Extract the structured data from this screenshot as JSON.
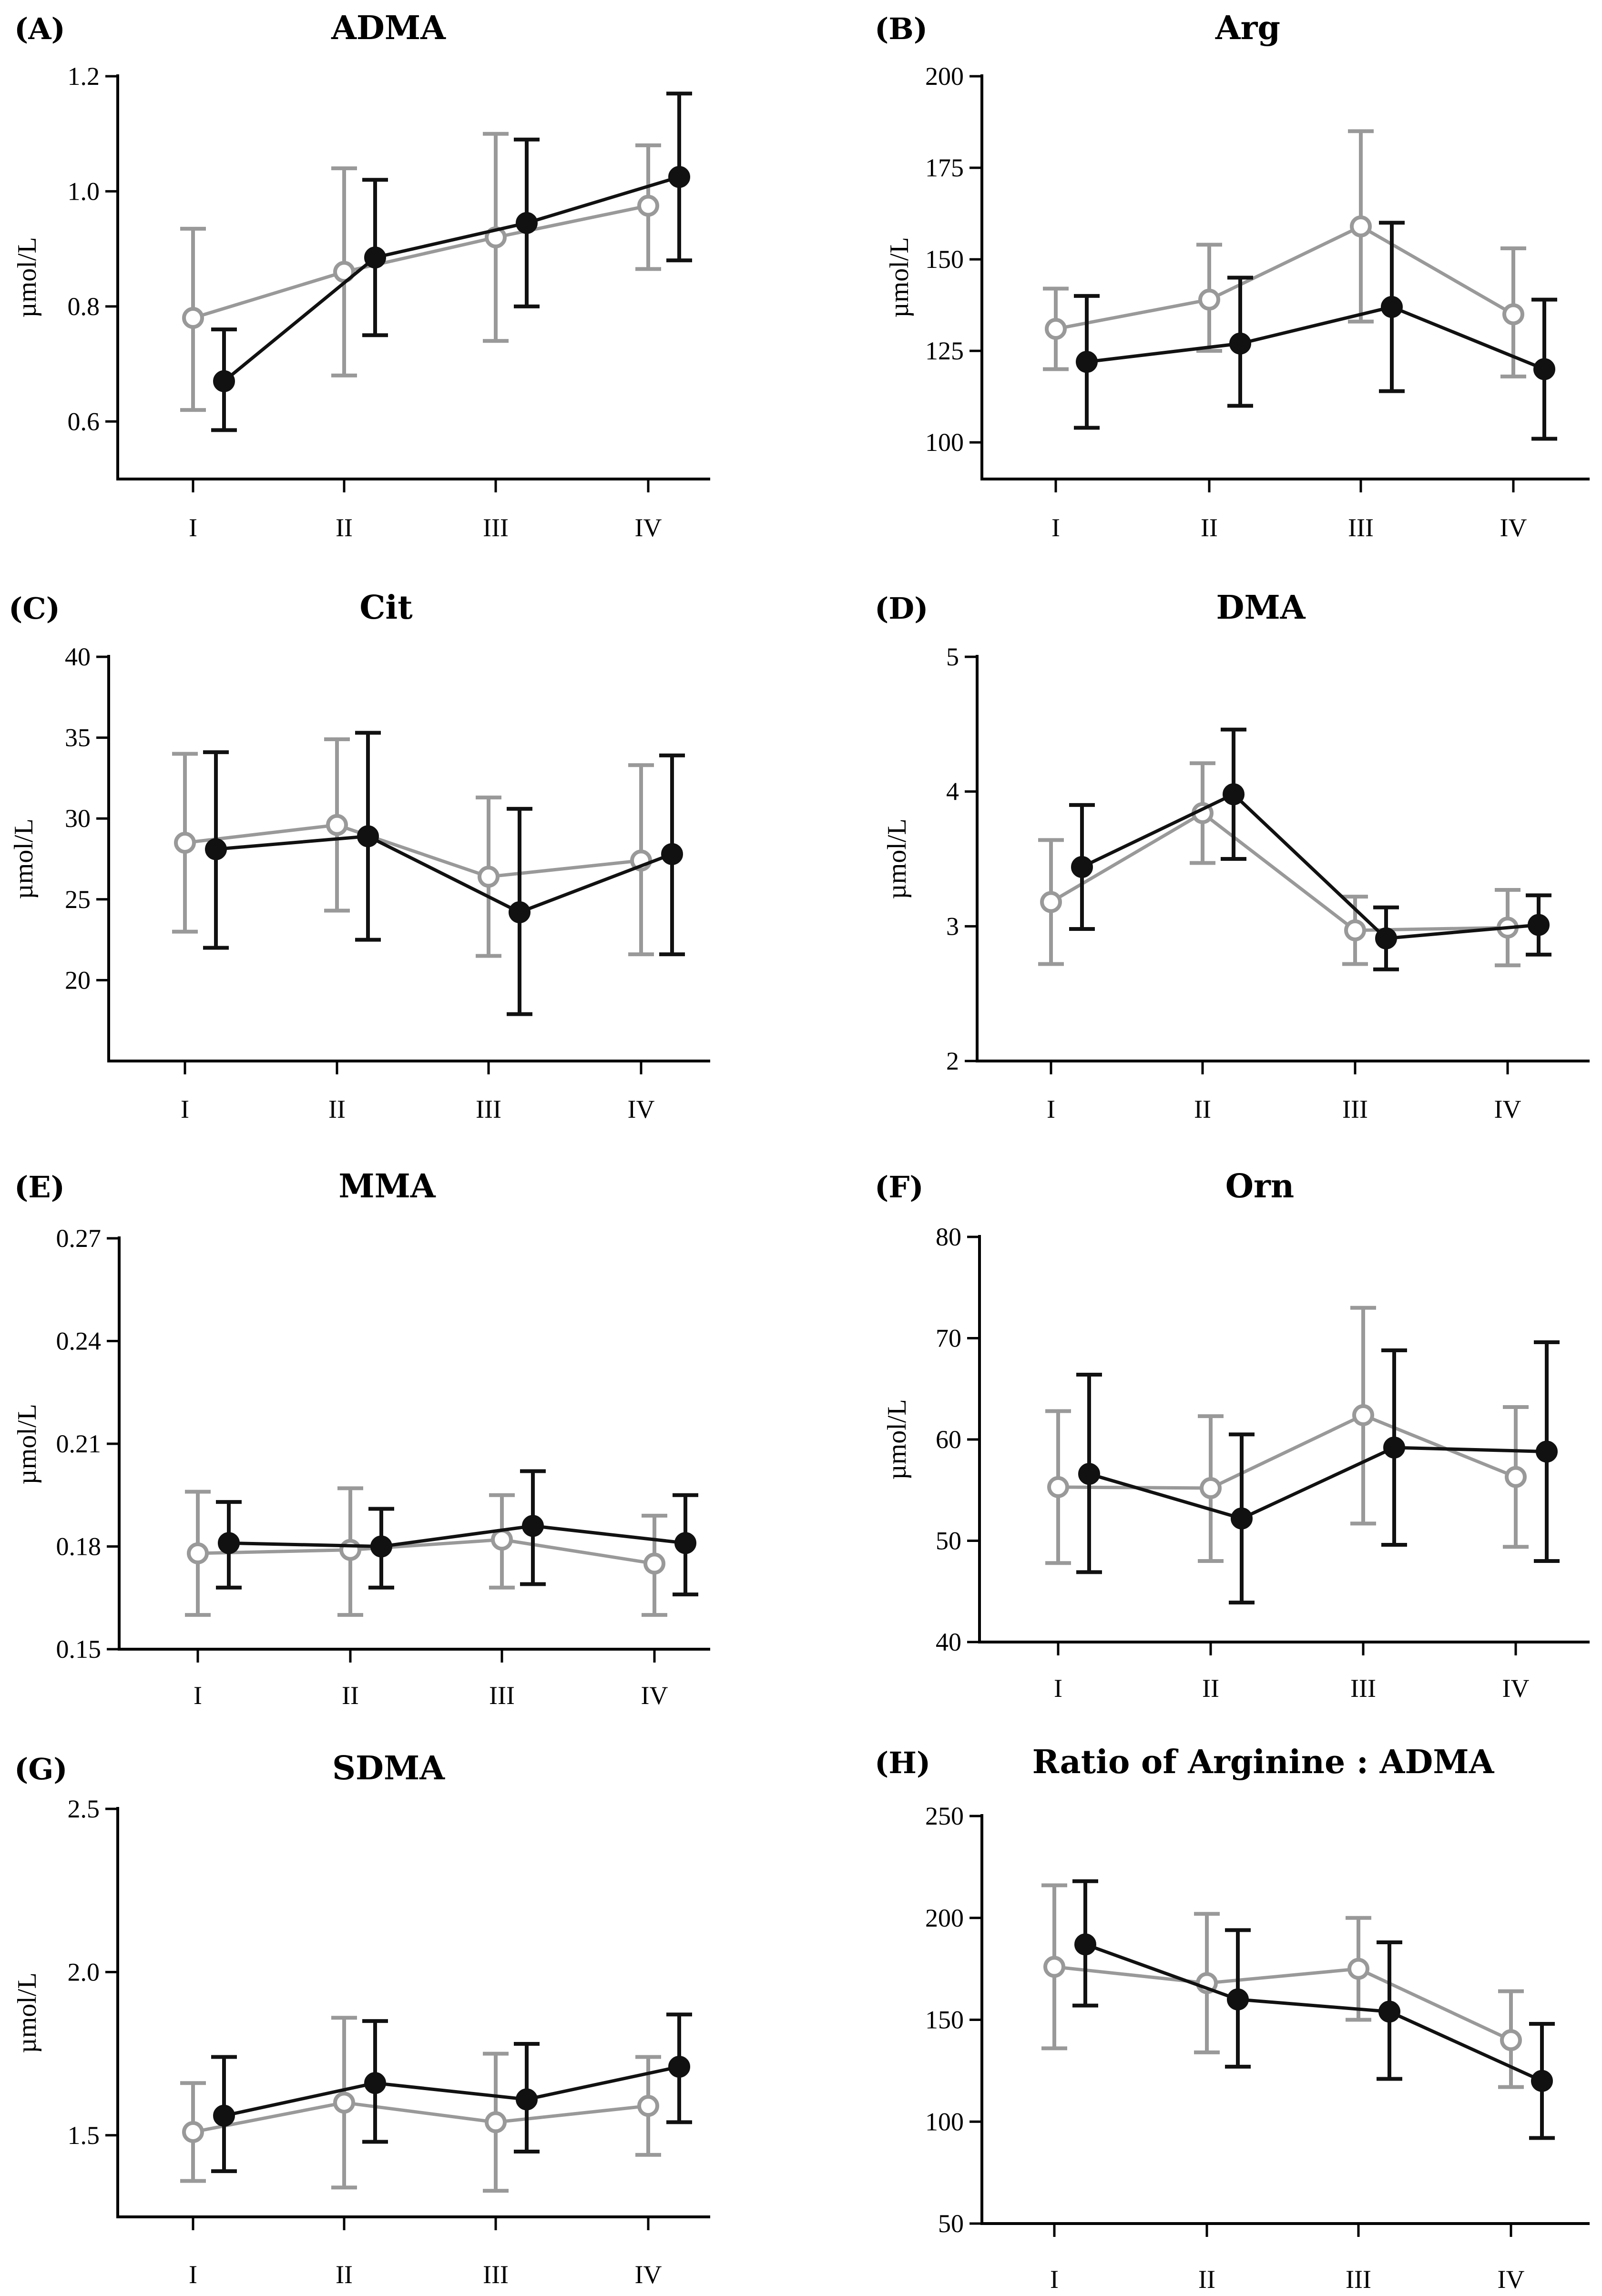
{
  "chart_data": [
    {
      "type": "line",
      "panel": "(A)",
      "title": "ADMA",
      "ylabel": "µmol/L",
      "categories": [
        "I",
        "II",
        "III",
        "IV"
      ],
      "ylim": [
        0.5,
        1.2
      ],
      "yticks": [
        "0.6",
        "0.8",
        "1.0",
        "1.2"
      ],
      "series": [
        {
          "name": "gray-open",
          "color": "#999999",
          "marker": "open-circle",
          "values": [
            0.78,
            0.86,
            0.92,
            0.975
          ],
          "lower": [
            0.62,
            0.68,
            0.74,
            0.865
          ],
          "upper": [
            0.935,
            1.04,
            1.1,
            1.08
          ]
        },
        {
          "name": "black-filled",
          "color": "#111111",
          "marker": "filled-circle",
          "values": [
            0.67,
            0.885,
            0.945,
            1.025
          ],
          "lower": [
            0.585,
            0.75,
            0.8,
            0.88
          ],
          "upper": [
            0.76,
            1.02,
            1.09,
            1.17
          ]
        }
      ]
    },
    {
      "type": "line",
      "panel": "(B)",
      "title": "Arg",
      "ylabel": "µmol/L",
      "categories": [
        "I",
        "II",
        "III",
        "IV"
      ],
      "ylim": [
        90,
        200
      ],
      "yticks": [
        "100",
        "125",
        "150",
        "175",
        "200"
      ],
      "series": [
        {
          "name": "gray-open",
          "color": "#999999",
          "marker": "open-circle",
          "values": [
            131,
            139,
            159,
            135
          ],
          "lower": [
            120,
            125,
            133,
            118
          ],
          "upper": [
            142,
            154,
            185,
            153
          ]
        },
        {
          "name": "black-filled",
          "color": "#111111",
          "marker": "filled-circle",
          "values": [
            122,
            127,
            137,
            120
          ],
          "lower": [
            104,
            110,
            114,
            101
          ],
          "upper": [
            140,
            145,
            160,
            139
          ]
        }
      ]
    },
    {
      "type": "line",
      "panel": "(C)",
      "title": "Cit",
      "ylabel": "µmol/L",
      "categories": [
        "I",
        "II",
        "III",
        "IV"
      ],
      "ylim": [
        15,
        40
      ],
      "yticks": [
        "20",
        "25",
        "30",
        "35",
        "40"
      ],
      "series": [
        {
          "name": "gray-open",
          "color": "#999999",
          "marker": "open-circle",
          "values": [
            28.5,
            29.6,
            26.4,
            27.4
          ],
          "lower": [
            23.0,
            24.3,
            21.5,
            21.6
          ],
          "upper": [
            34.0,
            34.9,
            31.3,
            33.3
          ]
        },
        {
          "name": "black-filled",
          "color": "#111111",
          "marker": "filled-circle",
          "values": [
            28.1,
            28.9,
            24.2,
            27.8
          ],
          "lower": [
            22.0,
            22.5,
            17.9,
            21.6
          ],
          "upper": [
            34.1,
            35.3,
            30.6,
            33.9
          ]
        }
      ]
    },
    {
      "type": "line",
      "panel": "(D)",
      "title": "DMA",
      "ylabel": "µmol/L",
      "categories": [
        "I",
        "II",
        "III",
        "IV"
      ],
      "ylim": [
        2,
        5
      ],
      "yticks": [
        "2",
        "3",
        "4",
        "5"
      ],
      "series": [
        {
          "name": "gray-open",
          "color": "#999999",
          "marker": "open-circle",
          "values": [
            3.18,
            3.84,
            2.97,
            2.99
          ],
          "lower": [
            2.72,
            3.47,
            2.72,
            2.71
          ],
          "upper": [
            3.64,
            4.21,
            3.22,
            3.27
          ]
        },
        {
          "name": "black-filled",
          "color": "#111111",
          "marker": "filled-circle",
          "values": [
            3.44,
            3.98,
            2.91,
            3.01
          ],
          "lower": [
            2.98,
            3.5,
            2.68,
            2.79
          ],
          "upper": [
            3.9,
            4.46,
            3.14,
            3.23
          ]
        }
      ]
    },
    {
      "type": "line",
      "panel": "(E)",
      "title": "MMA",
      "ylabel": "µmol/L",
      "categories": [
        "I",
        "II",
        "III",
        "IV"
      ],
      "ylim": [
        0.15,
        0.27
      ],
      "yticks": [
        "0.15",
        "0.18",
        "0.21",
        "0.24",
        "0.27"
      ],
      "series": [
        {
          "name": "gray-open",
          "color": "#999999",
          "marker": "open-circle",
          "values": [
            0.178,
            0.179,
            0.182,
            0.175
          ],
          "lower": [
            0.16,
            0.16,
            0.168,
            0.16
          ],
          "upper": [
            0.196,
            0.197,
            0.195,
            0.189
          ]
        },
        {
          "name": "black-filled",
          "color": "#111111",
          "marker": "filled-circle",
          "values": [
            0.181,
            0.18,
            0.186,
            0.181
          ],
          "lower": [
            0.168,
            0.168,
            0.169,
            0.166
          ],
          "upper": [
            0.193,
            0.191,
            0.202,
            0.195
          ]
        }
      ]
    },
    {
      "type": "line",
      "panel": "(F)",
      "title": "Orn",
      "ylabel": "µmol/L",
      "categories": [
        "I",
        "II",
        "III",
        "IV"
      ],
      "ylim": [
        40,
        80
      ],
      "yticks": [
        "40",
        "50",
        "60",
        "70",
        "80"
      ],
      "series": [
        {
          "name": "gray-open",
          "color": "#999999",
          "marker": "open-circle",
          "values": [
            55.3,
            55.2,
            62.4,
            56.3
          ],
          "lower": [
            47.8,
            48.0,
            51.7,
            49.4
          ],
          "upper": [
            62.8,
            62.3,
            73.0,
            63.2
          ]
        },
        {
          "name": "black-filled",
          "color": "#111111",
          "marker": "filled-circle",
          "values": [
            56.6,
            52.2,
            59.2,
            58.8
          ],
          "lower": [
            46.9,
            43.9,
            49.6,
            48.0
          ],
          "upper": [
            66.4,
            60.5,
            68.8,
            69.6
          ]
        }
      ]
    },
    {
      "type": "line",
      "panel": "(G)",
      "title": "SDMA",
      "ylabel": "µmol/L",
      "categories": [
        "I",
        "II",
        "III",
        "IV"
      ],
      "ylim": [
        1.25,
        2.5
      ],
      "yticks": [
        "1.5",
        "2.0",
        "2.5"
      ],
      "series": [
        {
          "name": "gray-open",
          "color": "#999999",
          "marker": "open-circle",
          "values": [
            1.51,
            1.6,
            1.54,
            1.59
          ],
          "lower": [
            1.36,
            1.34,
            1.33,
            1.44
          ],
          "upper": [
            1.66,
            1.86,
            1.75,
            1.74
          ]
        },
        {
          "name": "black-filled",
          "color": "#111111",
          "marker": "filled-circle",
          "values": [
            1.56,
            1.66,
            1.61,
            1.71
          ],
          "lower": [
            1.39,
            1.48,
            1.45,
            1.54
          ],
          "upper": [
            1.74,
            1.85,
            1.78,
            1.87
          ]
        }
      ]
    },
    {
      "type": "line",
      "panel": "(H)",
      "title": "Ratio of Arginine : ADMA",
      "ylabel": "",
      "categories": [
        "I",
        "II",
        "III",
        "IV"
      ],
      "ylim": [
        50,
        250
      ],
      "yticks": [
        "50",
        "100",
        "150",
        "200",
        "250"
      ],
      "series": [
        {
          "name": "gray-open",
          "color": "#999999",
          "marker": "open-circle",
          "values": [
            176,
            168,
            175,
            140
          ],
          "lower": [
            136,
            134,
            150,
            117
          ],
          "upper": [
            216,
            202,
            200,
            164
          ]
        },
        {
          "name": "black-filled",
          "color": "#111111",
          "marker": "filled-circle",
          "values": [
            187,
            160,
            154,
            120
          ],
          "lower": [
            157,
            127,
            121,
            92
          ],
          "upper": [
            218,
            194,
            188,
            148
          ]
        }
      ]
    }
  ]
}
